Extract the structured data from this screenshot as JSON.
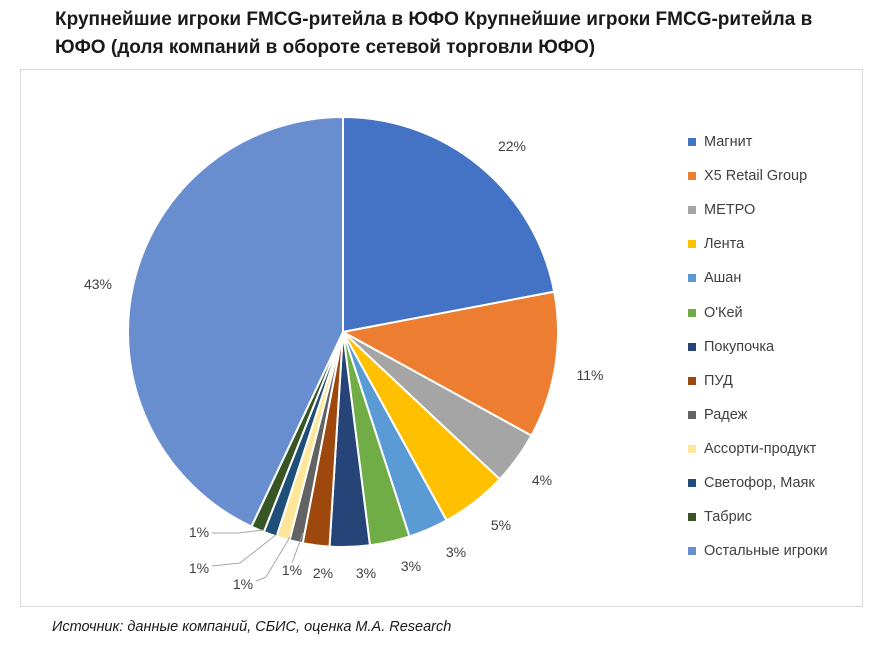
{
  "title": "Крупнейшие игроки FMCG-ритейла в ЮФО Крупнейшие игроки FMCG-ритейла в ЮФО (доля компаний в обороте сетевой торговли ЮФО)",
  "source": "Источник: данные компаний, СБИС, оценка M.A. Research",
  "chart_data": {
    "type": "pie",
    "title": "Крупнейшие игроки FMCG-ритейла в ЮФО Крупнейшие игроки FMCG-ритейла в ЮФО (доля компаний в обороте сетевой торговли ЮФО)",
    "legend_position": "right",
    "slices": [
      {
        "label": "Магнит",
        "value": 22,
        "display": "22%",
        "color": "#4472C4"
      },
      {
        "label": "X5 Retail Group",
        "value": 11,
        "display": "11%",
        "color": "#ED7D31"
      },
      {
        "label": "МЕТРО",
        "value": 4,
        "display": "4%",
        "color": "#A5A5A5"
      },
      {
        "label": "Лента",
        "value": 5,
        "display": "5%",
        "color": "#FFC000"
      },
      {
        "label": "Ашан",
        "value": 3,
        "display": "3%",
        "color": "#5B9BD5"
      },
      {
        "label": "О'Кей",
        "value": 3,
        "display": "3%",
        "color": "#70AD47"
      },
      {
        "label": "Покупочка",
        "value": 3,
        "display": "3%",
        "color": "#264478"
      },
      {
        "label": "ПУД",
        "value": 2,
        "display": "2%",
        "color": "#9E480E"
      },
      {
        "label": "Радеж",
        "value": 1,
        "display": "1%",
        "color": "#636363"
      },
      {
        "label": "Ассорти-продукт",
        "value": 1,
        "display": "1%",
        "color": "#FFE699"
      },
      {
        "label": "Светофор, Маяк",
        "value": 1,
        "display": "1%",
        "color": "#1F4E79"
      },
      {
        "label": "Табрис",
        "value": 1,
        "display": "1%",
        "color": "#375623"
      },
      {
        "label": "Остальные игроки",
        "value": 43,
        "display": "43%",
        "color": "#698ED0"
      }
    ]
  }
}
